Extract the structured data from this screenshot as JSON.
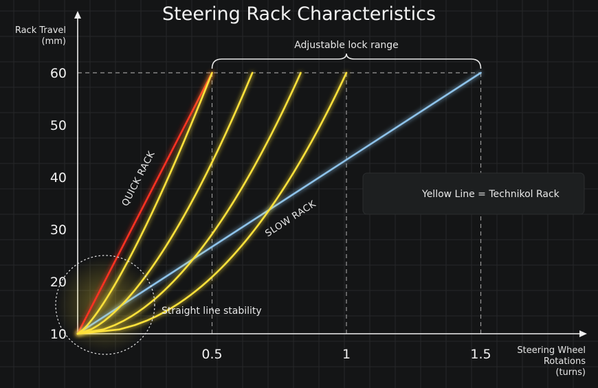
{
  "chart_data": {
    "type": "line",
    "title": "Steering Rack Characteristics",
    "ylabel": [
      "Rack Travel",
      "(mm)"
    ],
    "xlabel": [
      "Steering Wheel",
      "Rotations",
      "(turns)"
    ],
    "xlim": [
      0,
      1.85
    ],
    "ylim": [
      10,
      64
    ],
    "x_ticks": [
      {
        "value": 0.5,
        "label": "0.5"
      },
      {
        "value": 1,
        "label": "1"
      },
      {
        "value": 1.5,
        "label": "1.5"
      }
    ],
    "y_ticks": [
      {
        "value": 10,
        "label": "10"
      },
      {
        "value": 20,
        "label": "20"
      },
      {
        "value": 30,
        "label": "30"
      },
      {
        "value": 40,
        "label": "40"
      },
      {
        "value": 50,
        "label": "50"
      },
      {
        "value": 60,
        "label": "60"
      }
    ],
    "grid": true,
    "series": [
      {
        "name": "QUICK RACK",
        "color": "#ff3322",
        "kind": "linear",
        "x": [
          0,
          0.5
        ],
        "y": [
          10,
          60
        ]
      },
      {
        "name": "SLOW RACK",
        "color": "#8ec3ea",
        "kind": "linear",
        "x": [
          0,
          1.5
        ],
        "y": [
          10,
          60
        ]
      },
      {
        "color": "#ffe23a",
        "kind": "curve",
        "exponent": 1.3,
        "x": [
          0,
          0.5
        ],
        "y": [
          10,
          60
        ]
      },
      {
        "color": "#ffe23a",
        "kind": "curve",
        "exponent": 1.6,
        "x": [
          0,
          0.65
        ],
        "y": [
          10,
          60
        ]
      },
      {
        "color": "#ffe23a",
        "kind": "curve",
        "exponent": 1.9,
        "x": [
          0,
          0.83
        ],
        "y": [
          10,
          60
        ]
      },
      {
        "color": "#ffe23a",
        "kind": "curve",
        "exponent": 2.2,
        "x": [
          0,
          1.0
        ],
        "y": [
          10,
          60
        ]
      }
    ],
    "reference_lines": {
      "y": 60,
      "x": [
        0.5,
        1,
        1.5
      ]
    },
    "annotations": {
      "bracket": {
        "label": "Adjustable lock range",
        "x_range": [
          0.5,
          1.5
        ]
      },
      "stability": {
        "label": "Straight line stability"
      }
    },
    "legend": {
      "label": "Yellow Line = Technikol Rack",
      "color": "#ffe23a",
      "placement": "right"
    }
  }
}
